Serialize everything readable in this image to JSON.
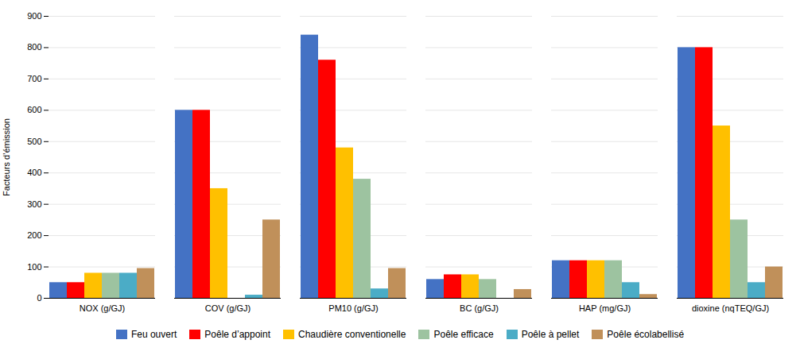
{
  "chart_data": {
    "type": "bar",
    "categories": [
      "NOX (g/GJ)",
      "COV (g/GJ)",
      "PM10 (g/GJ)",
      "BC (g/GJ)",
      "HAP (mg/GJ)",
      "dioxine (nqTEQ/GJ)"
    ],
    "series": [
      {
        "name": "Feu ouvert",
        "color": "#4472C4",
        "values": [
          50,
          600,
          840,
          60,
          120,
          800
        ]
      },
      {
        "name": "Poêle d’appoint",
        "color": "#FF0000",
        "values": [
          50,
          600,
          760,
          75,
          120,
          800
        ]
      },
      {
        "name": "Chaudière conventionelle",
        "color": "#FFC000",
        "values": [
          80,
          350,
          480,
          75,
          120,
          550
        ]
      },
      {
        "name": "Poêle efficace",
        "color": "#9DC3A0",
        "values": [
          80,
          0,
          380,
          60,
          120,
          250
        ]
      },
      {
        "name": "Poêle à pellet",
        "color": "#4BACC6",
        "values": [
          80,
          10,
          30,
          0,
          50,
          50
        ]
      },
      {
        "name": "Poêle écolabellisé",
        "color": "#C0905A",
        "values": [
          95,
          250,
          95,
          28,
          12,
          100
        ]
      }
    ],
    "ylabel": "Facteurs d’émission",
    "ylim": [
      0,
      900
    ],
    "yticks": [
      0,
      100,
      200,
      300,
      400,
      500,
      600,
      700,
      800,
      900
    ],
    "grid": true,
    "legend": "bottom"
  }
}
